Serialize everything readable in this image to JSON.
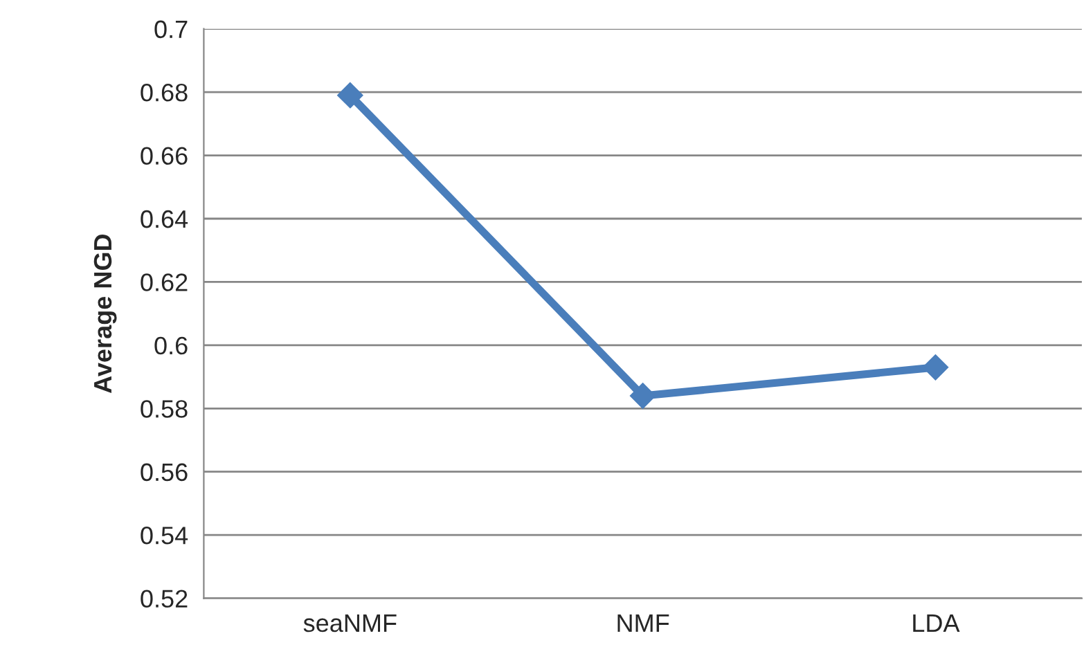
{
  "chart_data": {
    "type": "line",
    "ylabel": "Average NGD",
    "categories": [
      "seaNMF",
      "NMF",
      "LDA"
    ],
    "series": [
      {
        "color": "#4a7ebb",
        "values": [
          0.679,
          0.584,
          0.593
        ]
      }
    ],
    "ylim": [
      0.52,
      0.7
    ],
    "yticks": [
      {
        "value": 0.52,
        "label": "0.52"
      },
      {
        "value": 0.54,
        "label": "0.54"
      },
      {
        "value": 0.56,
        "label": "0.56"
      },
      {
        "value": 0.58,
        "label": "0.58"
      },
      {
        "value": 0.6,
        "label": "0.6"
      },
      {
        "value": 0.62,
        "label": "0.62"
      },
      {
        "value": 0.64,
        "label": "0.64"
      },
      {
        "value": 0.66,
        "label": "0.66"
      },
      {
        "value": 0.68,
        "label": "0.68"
      },
      {
        "value": 0.7,
        "label": "0.7"
      }
    ],
    "grid": "y",
    "marker": "diamond",
    "line_style": "solid",
    "legend": false
  }
}
